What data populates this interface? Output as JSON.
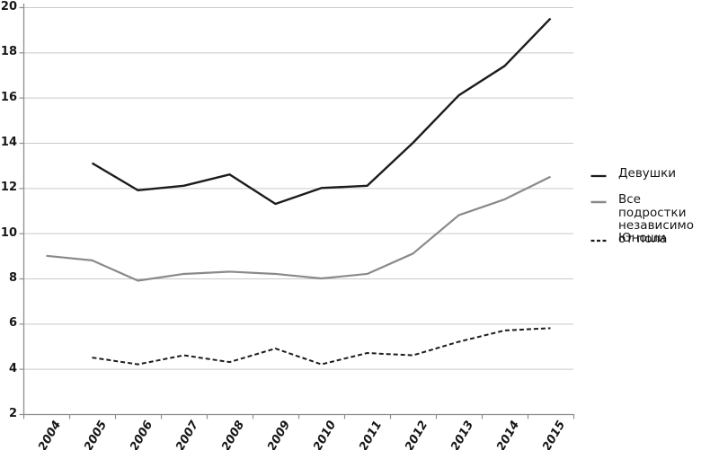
{
  "figure": {
    "background": "#ffffff",
    "text_color": "#161616",
    "grid_color": "#c9c9c9",
    "axis_color": "#8f8f8f"
  },
  "chart_data": {
    "type": "line",
    "x_categories": [
      "2004",
      "2005",
      "2006",
      "2007",
      "2008",
      "2009",
      "2010",
      "2011",
      "2012",
      "2013",
      "2014",
      "2015"
    ],
    "series": [
      {
        "id": "girls",
        "name": "Девушки",
        "color": "#1c1c1c",
        "dash": "solid",
        "stroke_width": 2.4,
        "values": [
          null,
          13.1,
          11.9,
          12.1,
          12.6,
          11.3,
          12.0,
          12.1,
          14.0,
          16.1,
          17.4,
          19.5
        ]
      },
      {
        "id": "all-teens",
        "name": "Все подростки независимо от пола",
        "color": "#8a8a8a",
        "dash": "solid",
        "stroke_width": 2.2,
        "values": [
          9.0,
          8.8,
          7.9,
          8.2,
          8.3,
          8.2,
          8.0,
          8.2,
          9.1,
          10.8,
          11.5,
          12.5
        ]
      },
      {
        "id": "boys",
        "name": "Юноши",
        "color": "#1c1c1c",
        "dash": "dashed",
        "stroke_width": 2.0,
        "values": [
          null,
          4.5,
          4.2,
          4.6,
          4.3,
          4.9,
          4.2,
          4.7,
          4.6,
          5.2,
          5.7,
          5.8
        ]
      }
    ],
    "axis": {
      "ylim": [
        2,
        20
      ],
      "ytick_step": 2,
      "yticks": [
        2,
        4,
        6,
        8,
        10,
        12,
        14,
        16,
        18,
        20
      ],
      "x_label_rotation_deg": -60,
      "grid": "horizontal",
      "title": "",
      "xlabel": "",
      "ylabel": ""
    },
    "legend_position": "right",
    "legend": {
      "items": [
        {
          "series": "girls",
          "swatch": "solid-dark-line",
          "lines": [
            "Девушки"
          ]
        },
        {
          "series": "all-teens",
          "swatch": "solid-gray-line",
          "lines": [
            "Все подростки",
            "независимо",
            "от пола"
          ]
        },
        {
          "series": "boys",
          "swatch": "dashed-dark-line",
          "lines": [
            "Юноши"
          ]
        }
      ]
    }
  }
}
